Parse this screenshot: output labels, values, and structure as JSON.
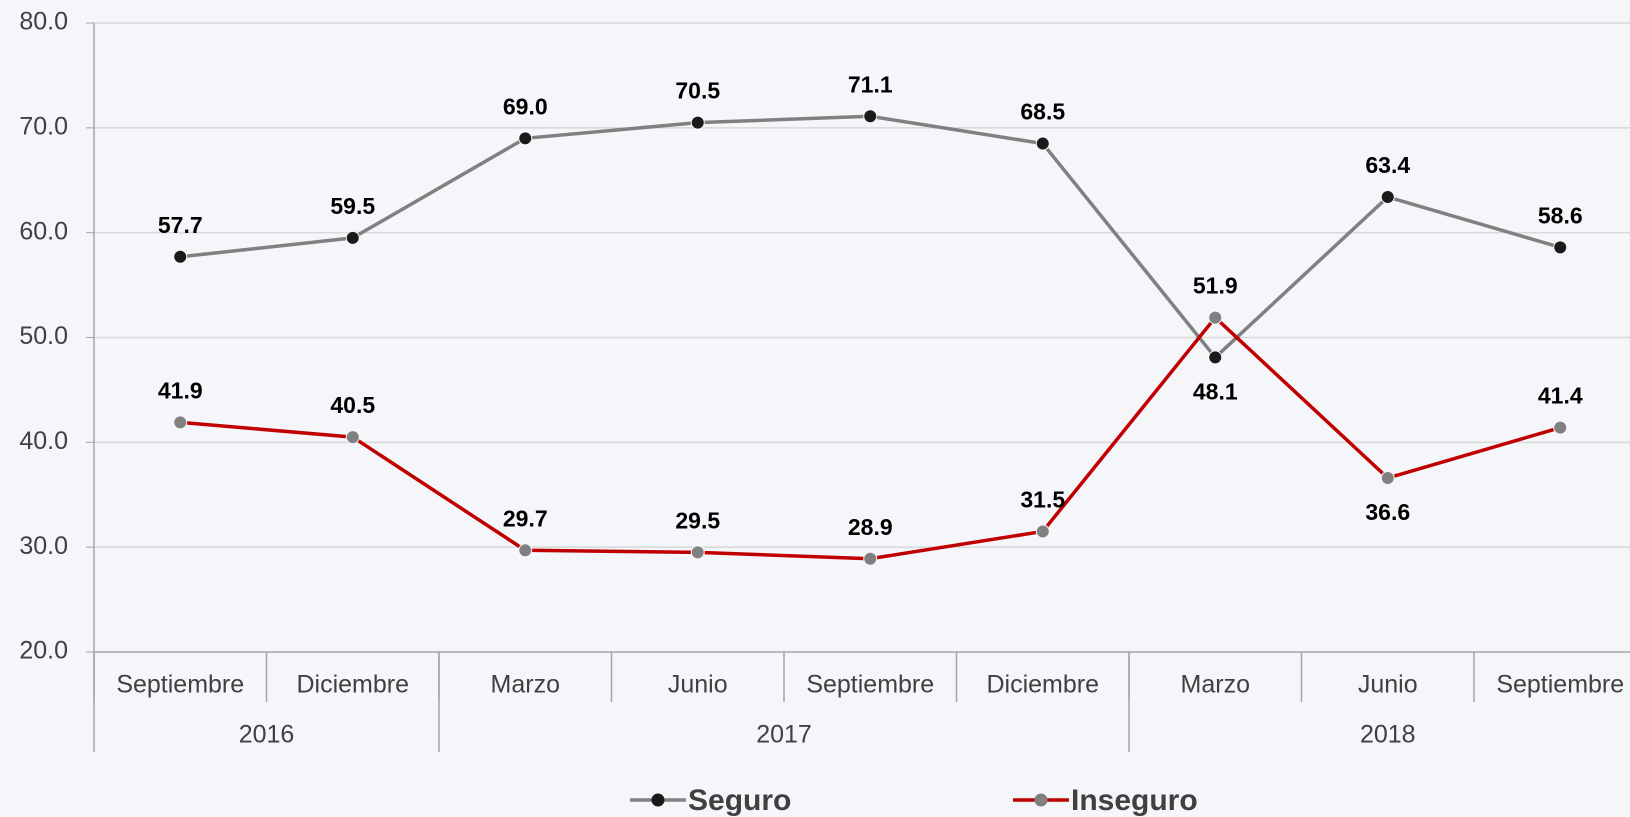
{
  "chart_data": {
    "type": "line",
    "categories": [
      "Septiembre",
      "Diciembre",
      "Marzo",
      "Junio",
      "Septiembre",
      "Diciembre",
      "Marzo",
      "Junio",
      "Septiembre"
    ],
    "year_groups": [
      {
        "label": "2016",
        "count": 2
      },
      {
        "label": "2017",
        "count": 4
      },
      {
        "label": "2018",
        "count": 3
      }
    ],
    "series": [
      {
        "name": "Seguro",
        "color": "#808080",
        "marker_color": "#1a1a1a",
        "values": [
          57.7,
          59.5,
          69.0,
          70.5,
          71.1,
          68.5,
          48.1,
          63.4,
          58.6
        ],
        "value_labels": [
          "57.7",
          "59.5",
          "69.0",
          "70.5",
          "71.1",
          "68.5",
          "48.1",
          "63.4",
          "58.6"
        ]
      },
      {
        "name": "Inseguro",
        "color": "#c00000",
        "marker_color": "#808080",
        "values": [
          41.9,
          40.5,
          29.7,
          29.5,
          28.9,
          31.5,
          51.9,
          36.6,
          41.4
        ],
        "value_labels": [
          "41.9",
          "40.5",
          "29.7",
          "29.5",
          "28.9",
          "31.5",
          "51.9",
          "36.6",
          "41.4"
        ]
      }
    ],
    "ylim": [
      20,
      80
    ],
    "yticks": [
      {
        "value": 20,
        "label": "20.0"
      },
      {
        "value": 30,
        "label": "30.0"
      },
      {
        "value": 40,
        "label": "40.0"
      },
      {
        "value": 50,
        "label": "50.0"
      },
      {
        "value": 60,
        "label": "60.0"
      },
      {
        "value": 70,
        "label": "70.0"
      },
      {
        "value": 80,
        "label": "80.0"
      }
    ],
    "grid": true,
    "legend": "bottom"
  }
}
